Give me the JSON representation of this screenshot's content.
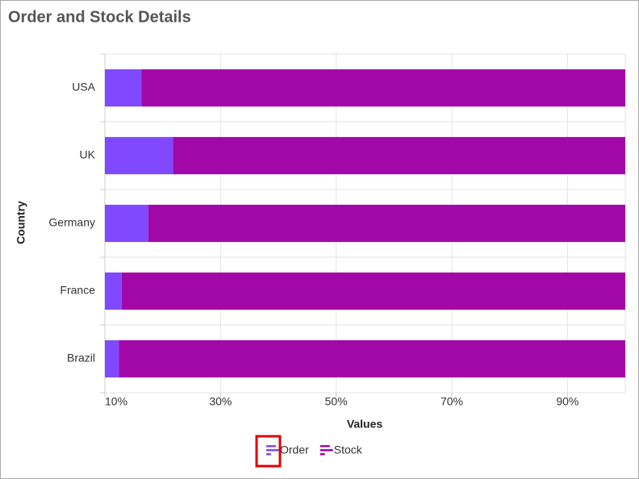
{
  "chart_data": {
    "type": "bar",
    "stacked": "percent",
    "orientation": "horizontal",
    "title": "Order and Stock Details",
    "x_label": "Values",
    "y_label": "Country",
    "categories": [
      "USA",
      "UK",
      "Germany",
      "France",
      "Brazil"
    ],
    "series": [
      {
        "name": "Order",
        "color": "#8049ff",
        "values": [
          16.3,
          21.8,
          17.5,
          12.9,
          12.4
        ]
      },
      {
        "name": "Stock",
        "color": "#a208a8",
        "values": [
          83.7,
          78.2,
          82.5,
          87.1,
          87.6
        ]
      }
    ],
    "xlim": [
      10,
      100
    ],
    "xticks": [
      {
        "value": 10,
        "label": "10%"
      },
      {
        "value": 30,
        "label": "30%"
      },
      {
        "value": 50,
        "label": "50%"
      },
      {
        "value": 70,
        "label": "70%"
      },
      {
        "value": 90,
        "label": "90%"
      }
    ],
    "grid": true,
    "legend": "bottom"
  }
}
